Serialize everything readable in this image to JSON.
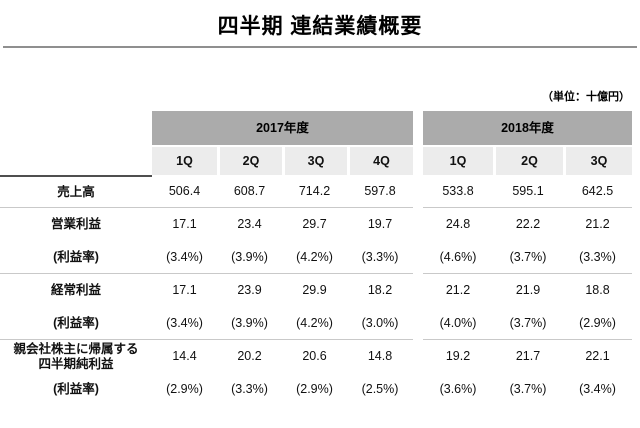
{
  "page": {
    "title": "四半期 連結業績概要",
    "unit_note": "（単位：十億円）"
  },
  "table": {
    "groups": [
      {
        "label": "2017年度",
        "quarters": [
          "1Q",
          "2Q",
          "3Q",
          "4Q"
        ]
      },
      {
        "label": "2018年度",
        "quarters": [
          "1Q",
          "2Q",
          "3Q"
        ]
      }
    ],
    "rows": [
      {
        "label": "売上高",
        "values": [
          "506.4",
          "608.7",
          "714.2",
          "597.8",
          "533.8",
          "595.1",
          "642.5"
        ]
      },
      {
        "label": "営業利益",
        "values": [
          "17.1",
          "23.4",
          "29.7",
          "19.7",
          "24.8",
          "22.2",
          "21.2"
        ]
      },
      {
        "label": "(利益率)",
        "values": [
          "(3.4%)",
          "(3.9%)",
          "(4.2%)",
          "(3.3%)",
          "(4.6%)",
          "(3.7%)",
          "(3.3%)"
        ]
      },
      {
        "label": "経常利益",
        "values": [
          "17.1",
          "23.9",
          "29.9",
          "18.2",
          "21.2",
          "21.9",
          "18.8"
        ]
      },
      {
        "label": "(利益率)",
        "values": [
          "(3.4%)",
          "(3.9%)",
          "(4.2%)",
          "(3.0%)",
          "(4.0%)",
          "(3.7%)",
          "(2.9%)"
        ]
      },
      {
        "label": "親会社株主に帰属する\n四半期純利益",
        "values": [
          "14.4",
          "20.2",
          "20.6",
          "14.8",
          "19.2",
          "21.7",
          "22.1"
        ]
      },
      {
        "label": "(利益率)",
        "values": [
          "(2.9%)",
          "(3.3%)",
          "(2.9%)",
          "(2.5%)",
          "(3.6%)",
          "(3.7%)",
          "(3.4%)"
        ]
      }
    ]
  }
}
